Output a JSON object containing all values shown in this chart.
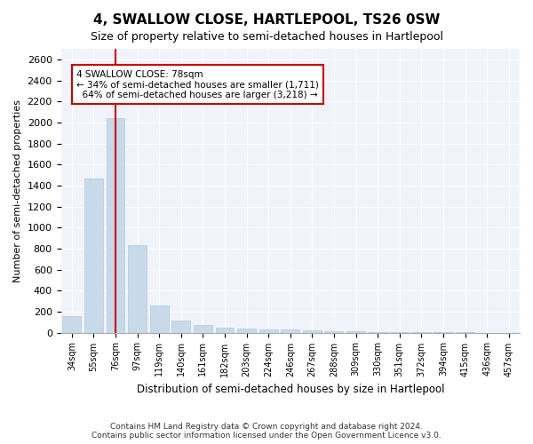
{
  "title": "4, SWALLOW CLOSE, HARTLEPOOL, TS26 0SW",
  "subtitle": "Size of property relative to semi-detached houses in Hartlepool",
  "xlabel": "Distribution of semi-detached houses by size in Hartlepool",
  "ylabel": "Number of semi-detached properties",
  "bar_color": "#c8daea",
  "bar_edge_color": "#b0c8e0",
  "property_line_color": "#cc0000",
  "annotation_box_color": "#cc0000",
  "categories": [
    "34sqm",
    "55sqm",
    "76sqm",
    "97sqm",
    "119sqm",
    "140sqm",
    "161sqm",
    "182sqm",
    "203sqm",
    "224sqm",
    "246sqm",
    "267sqm",
    "288sqm",
    "309sqm",
    "330sqm",
    "351sqm",
    "372sqm",
    "394sqm",
    "415sqm",
    "436sqm",
    "457sqm"
  ],
  "values": [
    155,
    1470,
    2040,
    835,
    255,
    115,
    70,
    45,
    35,
    30,
    30,
    25,
    15,
    10,
    5,
    3,
    2,
    1,
    1,
    0,
    0
  ],
  "property_bar_index": 2,
  "property_label": "4 SWALLOW CLOSE: 78sqm",
  "smaller_pct": 34,
  "smaller_count": 1711,
  "larger_pct": 64,
  "larger_count": 3218,
  "ylim": [
    0,
    2700
  ],
  "yticks": [
    0,
    200,
    400,
    600,
    800,
    1000,
    1200,
    1400,
    1600,
    1800,
    2000,
    2200,
    2400,
    2600
  ],
  "footer1": "Contains HM Land Registry data © Crown copyright and database right 2024.",
  "footer2": "Contains public sector information licensed under the Open Government Licence v3.0.",
  "bg_color": "#ffffff",
  "plot_bg_color": "#f0f4fa"
}
